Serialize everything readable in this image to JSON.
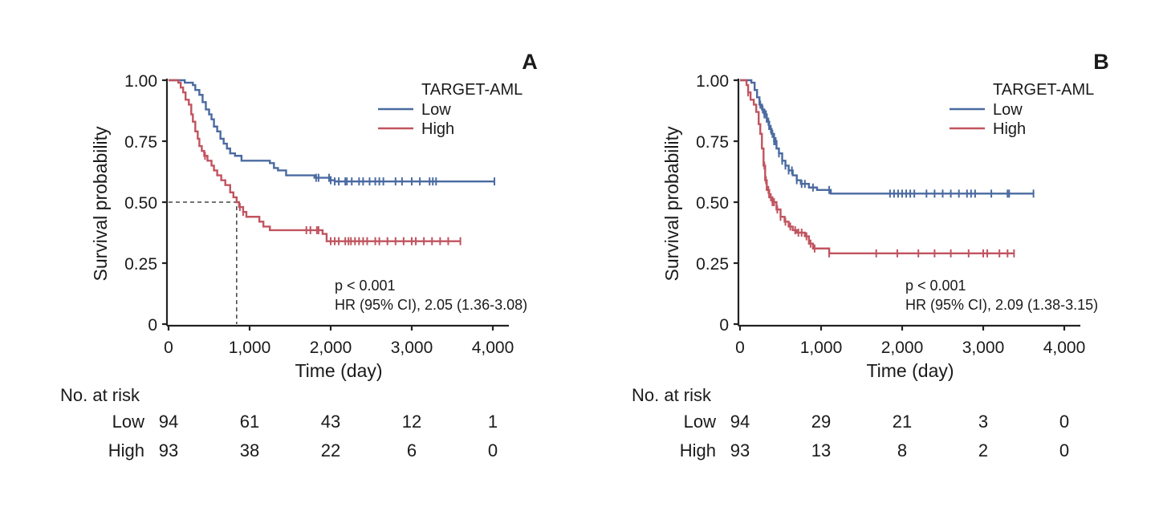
{
  "chart_data": [
    {
      "type": "line",
      "panel_label": "A",
      "xlabel": "Time (day)",
      "ylabel": "Survival probability",
      "xlim": [
        0,
        4000
      ],
      "ylim": [
        0,
        1
      ],
      "x_ticks": [
        0,
        1000,
        2000,
        3000,
        4000
      ],
      "x_tick_labels": [
        "0",
        "1,000",
        "2,000",
        "3,000",
        "4,000"
      ],
      "y_ticks": [
        0,
        0.25,
        0.5,
        0.75,
        1.0
      ],
      "y_tick_labels": [
        "0",
        "0.25",
        "0.50",
        "0.75",
        "1.00"
      ],
      "legend_title": "TARGET-AML",
      "legend_position": "top-right",
      "grid": false,
      "annotations": [
        "p < 0.001",
        "HR (95% CI), 2.05 (1.36-3.08)"
      ],
      "median_line": {
        "x": 840,
        "y": 0.5
      },
      "series": [
        {
          "name": "Low",
          "color": "#4a6aa0",
          "steps": [
            [
              0,
              1.0
            ],
            [
              200,
              0.99
            ],
            [
              300,
              0.98
            ],
            [
              330,
              0.96
            ],
            [
              380,
              0.94
            ],
            [
              420,
              0.91
            ],
            [
              460,
              0.88
            ],
            [
              500,
              0.86
            ],
            [
              530,
              0.84
            ],
            [
              560,
              0.81
            ],
            [
              600,
              0.79
            ],
            [
              640,
              0.76
            ],
            [
              680,
              0.74
            ],
            [
              720,
              0.72
            ],
            [
              760,
              0.7
            ],
            [
              820,
              0.69
            ],
            [
              900,
              0.67
            ],
            [
              1250,
              0.66
            ],
            [
              1300,
              0.64
            ],
            [
              1350,
              0.63
            ],
            [
              1450,
              0.61
            ],
            [
              1800,
              0.6
            ],
            [
              2000,
              0.59
            ],
            [
              2050,
              0.585
            ],
            [
              4020,
              0.585
            ]
          ],
          "censors": [
            1820,
            1850,
            1980,
            2000,
            2050,
            2100,
            2180,
            2200,
            2260,
            2350,
            2400,
            2480,
            2550,
            2600,
            2650,
            2800,
            2880,
            3000,
            3100,
            3220,
            3260,
            3300,
            4020
          ]
        },
        {
          "name": "High",
          "color": "#c0545f",
          "steps": [
            [
              0,
              1.0
            ],
            [
              120,
              0.99
            ],
            [
              150,
              0.97
            ],
            [
              180,
              0.95
            ],
            [
              210,
              0.92
            ],
            [
              250,
              0.9
            ],
            [
              280,
              0.86
            ],
            [
              300,
              0.83
            ],
            [
              330,
              0.79
            ],
            [
              360,
              0.76
            ],
            [
              380,
              0.73
            ],
            [
              410,
              0.71
            ],
            [
              440,
              0.69
            ],
            [
              480,
              0.67
            ],
            [
              530,
              0.65
            ],
            [
              560,
              0.63
            ],
            [
              600,
              0.61
            ],
            [
              650,
              0.59
            ],
            [
              700,
              0.57
            ],
            [
              760,
              0.54
            ],
            [
              800,
              0.52
            ],
            [
              840,
              0.5
            ],
            [
              870,
              0.48
            ],
            [
              920,
              0.46
            ],
            [
              960,
              0.44
            ],
            [
              1120,
              0.42
            ],
            [
              1170,
              0.4
            ],
            [
              1250,
              0.385
            ],
            [
              1900,
              0.37
            ],
            [
              1950,
              0.34
            ],
            [
              3600,
              0.34
            ]
          ],
          "censors": [
            450,
            880,
            920,
            1700,
            1750,
            1830,
            1850,
            2000,
            2050,
            2100,
            2180,
            2220,
            2250,
            2300,
            2350,
            2400,
            2450,
            2550,
            2600,
            2700,
            2800,
            2900,
            3000,
            3050,
            3150,
            3250,
            3350,
            3450,
            3600
          ]
        }
      ],
      "risk_table": {
        "title": "No. at risk",
        "rows": [
          {
            "label": "Low",
            "values": [
              "94",
              "61",
              "43",
              "12",
              "1"
            ]
          },
          {
            "label": "High",
            "values": [
              "93",
              "38",
              "22",
              "6",
              "0"
            ]
          }
        ]
      }
    },
    {
      "type": "line",
      "panel_label": "B",
      "xlabel": "Time (day)",
      "ylabel": "Survival probability",
      "xlim": [
        0,
        4000
      ],
      "ylim": [
        0,
        1
      ],
      "x_ticks": [
        0,
        1000,
        2000,
        3000,
        4000
      ],
      "x_tick_labels": [
        "0",
        "1,000",
        "2,000",
        "3,000",
        "4,000"
      ],
      "y_ticks": [
        0,
        0.25,
        0.5,
        0.75,
        1.0
      ],
      "y_tick_labels": [
        "0",
        "0.25",
        "0.50",
        "0.75",
        "1.00"
      ],
      "legend_title": "TARGET-AML",
      "legend_position": "top-right",
      "grid": false,
      "annotations": [
        "p < 0.001",
        "HR (95% CI), 2.09 (1.38-3.15)"
      ],
      "series": [
        {
          "name": "Low",
          "color": "#4a6aa0",
          "steps": [
            [
              0,
              1.0
            ],
            [
              140,
              0.99
            ],
            [
              180,
              0.96
            ],
            [
              210,
              0.93
            ],
            [
              240,
              0.9
            ],
            [
              270,
              0.88
            ],
            [
              300,
              0.86
            ],
            [
              330,
              0.83
            ],
            [
              360,
              0.8
            ],
            [
              390,
              0.78
            ],
            [
              420,
              0.75
            ],
            [
              450,
              0.72
            ],
            [
              480,
              0.7
            ],
            [
              520,
              0.67
            ],
            [
              560,
              0.65
            ],
            [
              600,
              0.63
            ],
            [
              650,
              0.61
            ],
            [
              700,
              0.59
            ],
            [
              750,
              0.575
            ],
            [
              850,
              0.56
            ],
            [
              950,
              0.55
            ],
            [
              1120,
              0.535
            ],
            [
              3620,
              0.535
            ]
          ],
          "censors": [
            250,
            280,
            300,
            320,
            350,
            380,
            400,
            420,
            440,
            480,
            520,
            560,
            600,
            640,
            700,
            760,
            800,
            900,
            1100,
            1850,
            1900,
            1950,
            2000,
            2050,
            2100,
            2150,
            2300,
            2400,
            2500,
            2600,
            2700,
            2800,
            2850,
            2900,
            3100,
            3300,
            3320,
            3620
          ]
        },
        {
          "name": "High",
          "color": "#c0545f",
          "steps": [
            [
              0,
              1.0
            ],
            [
              80,
              0.98
            ],
            [
              100,
              0.95
            ],
            [
              130,
              0.92
            ],
            [
              170,
              0.9
            ],
            [
              200,
              0.87
            ],
            [
              230,
              0.82
            ],
            [
              250,
              0.78
            ],
            [
              270,
              0.72
            ],
            [
              290,
              0.65
            ],
            [
              310,
              0.59
            ],
            [
              330,
              0.55
            ],
            [
              360,
              0.52
            ],
            [
              400,
              0.5
            ],
            [
              450,
              0.47
            ],
            [
              500,
              0.44
            ],
            [
              550,
              0.42
            ],
            [
              600,
              0.4
            ],
            [
              650,
              0.385
            ],
            [
              700,
              0.375
            ],
            [
              800,
              0.36
            ],
            [
              850,
              0.33
            ],
            [
              900,
              0.31
            ],
            [
              1100,
              0.29
            ],
            [
              3380,
              0.29
            ]
          ],
          "censors": [
            100,
            300,
            320,
            350,
            380,
            400,
            420,
            460,
            500,
            560,
            620,
            680,
            720,
            760,
            820,
            870,
            920,
            1100,
            1680,
            1940,
            2200,
            2400,
            2600,
            2820,
            3000,
            3050,
            3200,
            3300,
            3380
          ]
        }
      ],
      "risk_table": {
        "title": "No. at risk",
        "rows": [
          {
            "label": "Low",
            "values": [
              "94",
              "29",
              "21",
              "3",
              "0"
            ]
          },
          {
            "label": "High",
            "values": [
              "93",
              "13",
              "8",
              "2",
              "0"
            ]
          }
        ]
      }
    }
  ]
}
